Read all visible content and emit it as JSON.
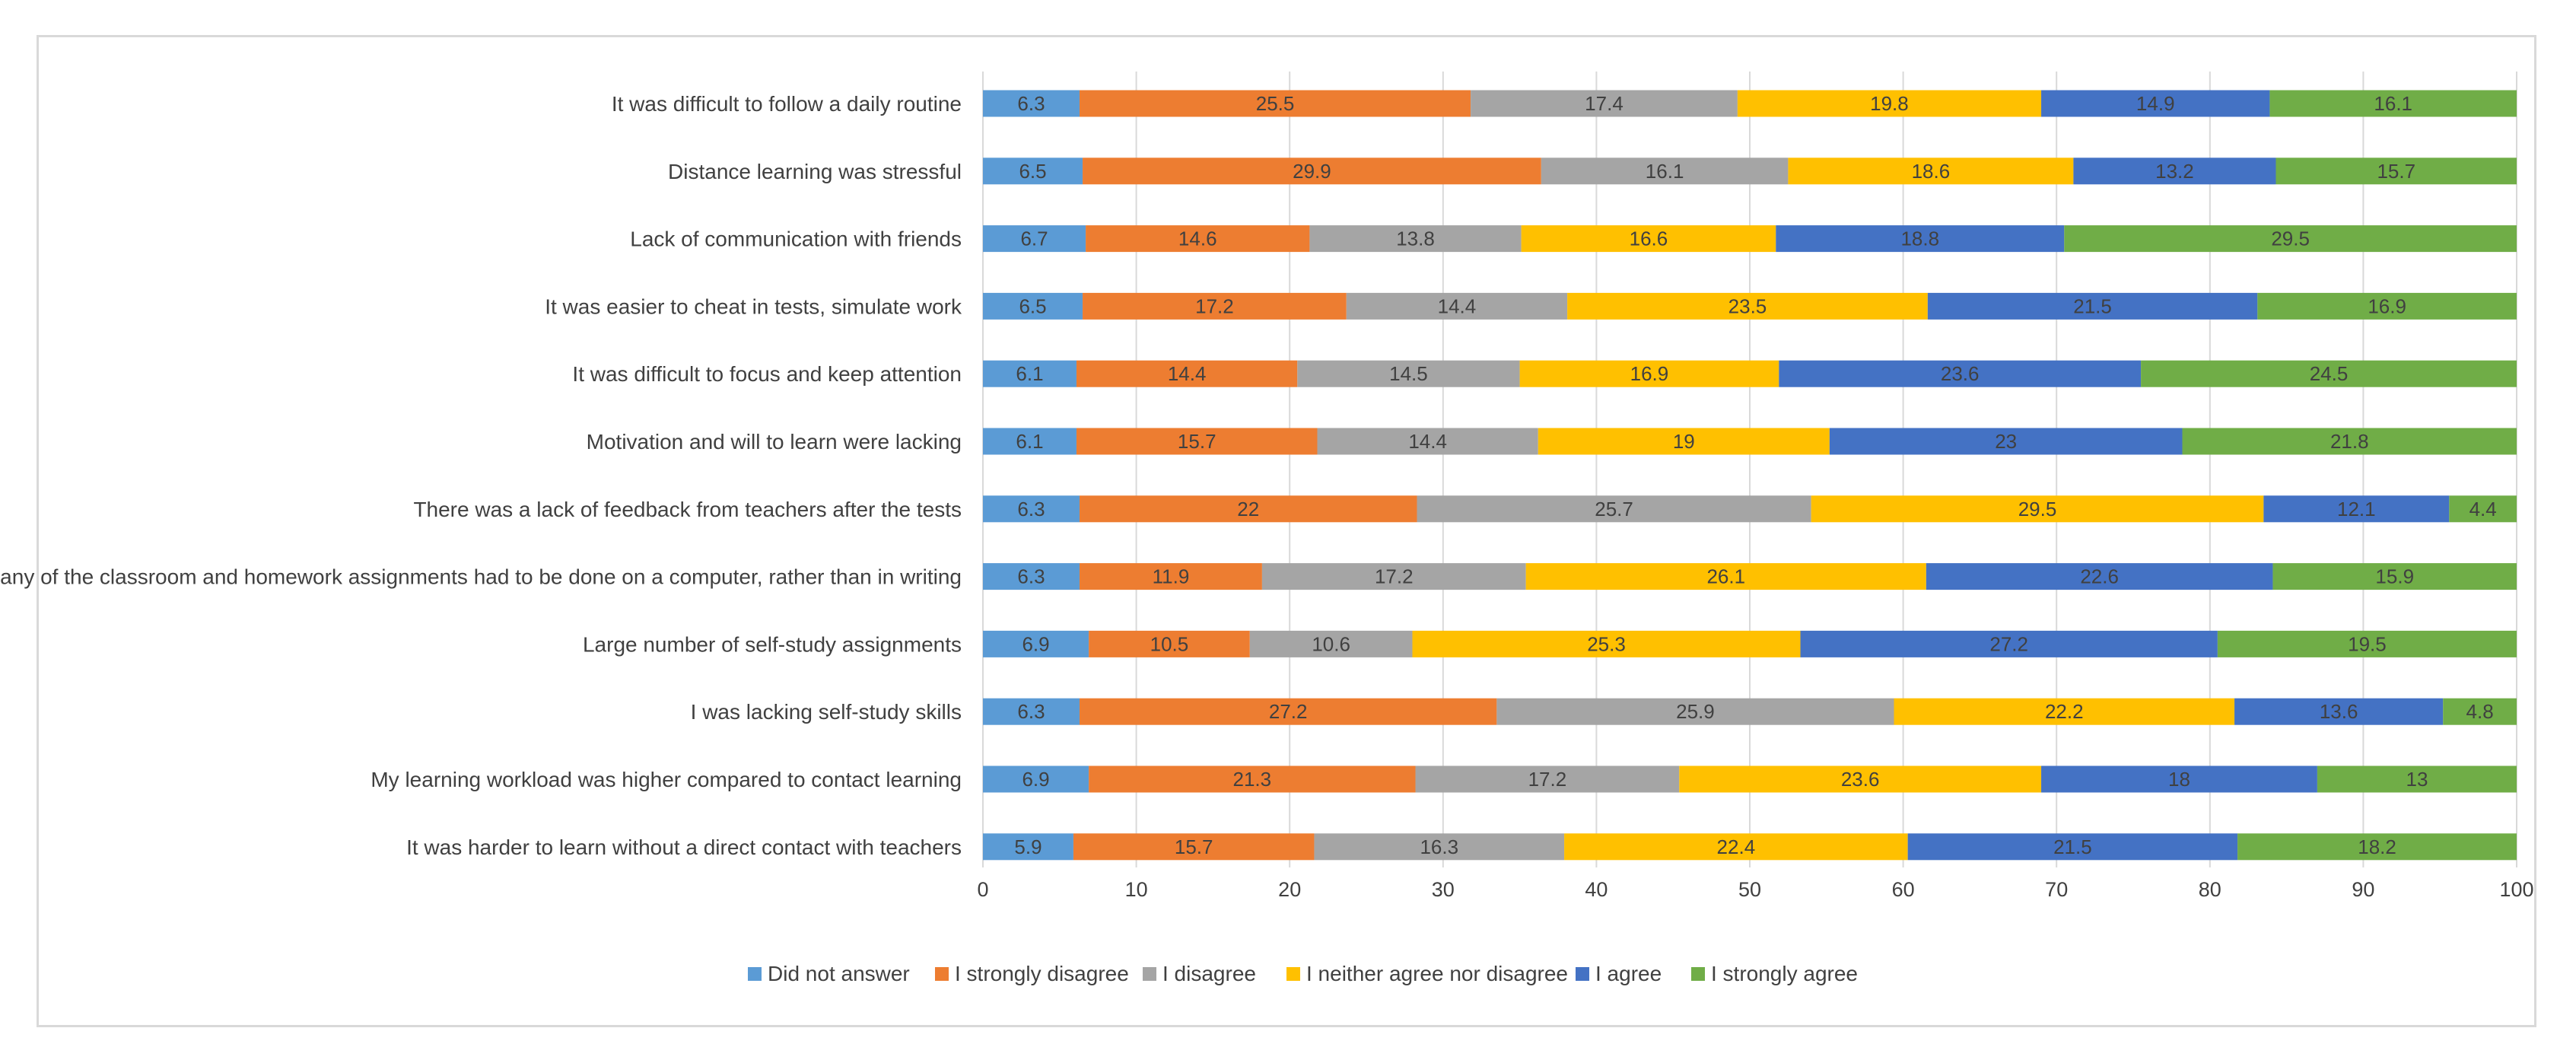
{
  "chart_data": {
    "type": "bar",
    "orientation": "horizontal",
    "stacked": true,
    "title": "",
    "xlabel": "",
    "ylabel": "",
    "xlim": [
      0,
      100
    ],
    "xticks": [
      0,
      10,
      20,
      30,
      40,
      50,
      60,
      70,
      80,
      90,
      100
    ],
    "grid": true,
    "legend_position": "bottom",
    "categories": [
      "It was difficult to follow a daily routine",
      "Distance learning was stressful",
      "Lack of communication with friends",
      "It was easier to cheat in tests, simulate work",
      "It was difficult to focus and keep attention",
      "Motivation and will to learn were lacking",
      "There was a lack of feedback from teachers after the tests",
      "Many of the classroom and homework assignments had to be done on a computer, rather than in writing",
      "Large number of self-study assignments",
      "I was lacking self-study skills",
      "My learning workload was higher compared to contact learning",
      "It was harder to learn without a direct contact with teachers"
    ],
    "series": [
      {
        "name": "Did not answer",
        "color": "#5B9BD5",
        "values": [
          6.3,
          6.5,
          6.7,
          6.5,
          6.1,
          6.1,
          6.3,
          6.3,
          6.9,
          6.3,
          6.9,
          5.9
        ]
      },
      {
        "name": "I strongly disagree",
        "color": "#ED7D31",
        "values": [
          25.5,
          29.9,
          14.6,
          17.2,
          14.4,
          15.7,
          22,
          11.9,
          10.5,
          27.2,
          21.3,
          15.7
        ]
      },
      {
        "name": "I disagree",
        "color": "#A5A5A5",
        "values": [
          17.4,
          16.1,
          13.8,
          14.4,
          14.5,
          14.4,
          25.7,
          17.2,
          10.6,
          25.9,
          17.2,
          16.3
        ]
      },
      {
        "name": "I neither agree nor disagree",
        "color": "#FFC000",
        "values": [
          19.8,
          18.6,
          16.6,
          23.5,
          16.9,
          19,
          29.5,
          26.1,
          25.3,
          22.2,
          23.6,
          22.4
        ]
      },
      {
        "name": "I agree",
        "color": "#4472C4",
        "values": [
          14.9,
          13.2,
          18.8,
          21.5,
          23.6,
          23,
          12.1,
          22.6,
          27.2,
          13.6,
          18,
          21.5
        ]
      },
      {
        "name": "I strongly agree",
        "color": "#70AD47",
        "values": [
          16.1,
          15.7,
          29.5,
          16.9,
          24.5,
          21.8,
          4.4,
          15.9,
          19.5,
          4.8,
          13,
          18.2
        ]
      }
    ]
  }
}
